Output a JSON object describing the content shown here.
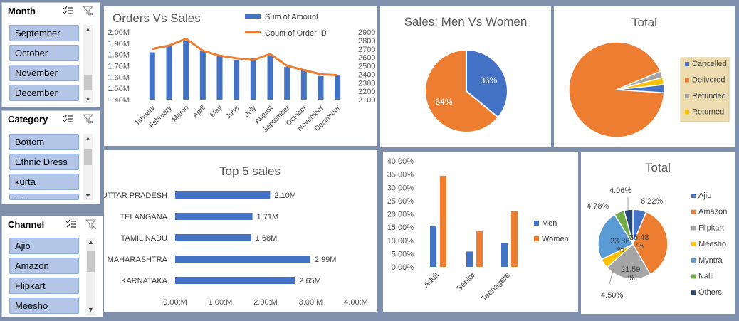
{
  "slicers": [
    {
      "title": "Month",
      "items": [
        "September",
        "October",
        "November",
        "December"
      ]
    },
    {
      "title": "Category",
      "items": [
        "Bottom",
        "Ethnic Dress",
        "kurta",
        "Set"
      ]
    },
    {
      "title": "Channel",
      "items": [
        "Ajio",
        "Amazon",
        "Flipkart",
        "Meesho"
      ]
    }
  ],
  "icons": {
    "multiselect": "multi-select-icon",
    "clear_filter": "clear-filter-icon",
    "scroll_up": "▲",
    "scroll_down": "▼"
  },
  "colors": {
    "blue": "#4472c4",
    "orange": "#ed7d31",
    "gray": "#a5a5a5",
    "yellow": "#ffc000",
    "lightblue": "#5b9bd5",
    "green": "#70ad47",
    "navy": "#264478"
  },
  "chart_data": [
    {
      "type": "bar+line",
      "title": "Orders Vs Sales",
      "categories": [
        "January",
        "February",
        "March",
        "April",
        "May",
        "June",
        "July",
        "August",
        "September",
        "October",
        "November",
        "December"
      ],
      "series": [
        {
          "name": "Sum of Amount",
          "axis": "left",
          "values": [
            1.82,
            1.88,
            1.92,
            1.83,
            1.79,
            1.75,
            1.77,
            1.8,
            1.69,
            1.67,
            1.61,
            1.62
          ]
        },
        {
          "name": "Count of Order ID",
          "axis": "right",
          "values": [
            2700,
            2740,
            2820,
            2680,
            2620,
            2590,
            2570,
            2640,
            2500,
            2450,
            2400,
            2390
          ]
        }
      ],
      "y_left_ticks": [
        "2.00M",
        "1.90M",
        "1.80M",
        "1.70M",
        "1.60M",
        "1.50M",
        "1.40M"
      ],
      "ylim_left": [
        1.4,
        2.0
      ],
      "y_right_ticks": [
        "2900",
        "2800",
        "2700",
        "2600",
        "2500",
        "2400",
        "2300",
        "2200",
        "2100"
      ],
      "ylim_right": [
        2100,
        2900
      ]
    },
    {
      "type": "pie",
      "title": "Sales: Men Vs Women",
      "slices": [
        {
          "name": "Men",
          "value": 36,
          "label": "36%"
        },
        {
          "name": "Women",
          "value": 64,
          "label": "64%"
        }
      ]
    },
    {
      "type": "pie",
      "title": "Total",
      "legend": "right",
      "slices": [
        {
          "name": "Cancelled",
          "value": 2.7
        },
        {
          "name": "Delivered",
          "value": 92.7
        },
        {
          "name": "Refunded",
          "value": 2.2
        },
        {
          "name": "Returned",
          "value": 2.4
        }
      ]
    },
    {
      "type": "bar",
      "orientation": "horizontal",
      "title": "Top 5 sales",
      "categories": [
        "UTTAR PRADESH",
        "TELANGANA",
        "TAMIL NADU",
        "MAHARASHTRA",
        "KARNATAKA"
      ],
      "values": [
        2.1,
        1.71,
        1.68,
        2.99,
        2.65
      ],
      "labels": [
        "2.10M",
        "1.71M",
        "1.68M",
        "2.99M",
        "2.65M"
      ],
      "x_ticks": [
        "0.00:M",
        "1.00:M",
        "2.00:M",
        "3.00:M",
        "4.00:M"
      ],
      "xlim": [
        0,
        4
      ]
    },
    {
      "type": "bar",
      "categories": [
        "Adult",
        "Senior",
        "Teenagere"
      ],
      "series": [
        {
          "name": "Men",
          "values": [
            15.3,
            5.8,
            9.0
          ]
        },
        {
          "name": "Women",
          "values": [
            34.4,
            13.5,
            21.0
          ]
        }
      ],
      "y_ticks": [
        "40.00%",
        "35.00%",
        "30.00%",
        "25.00%",
        "20.00%",
        "15.00%",
        "10.00%",
        "5.00%",
        "0.00%"
      ],
      "ylim": [
        0,
        40
      ],
      "legend": "right"
    },
    {
      "type": "pie",
      "title": "Total",
      "legend": "right",
      "slices": [
        {
          "name": "Ajio",
          "value": 6.22,
          "label": "6.22%"
        },
        {
          "name": "Amazon",
          "value": 35.48,
          "label": "35.48 %"
        },
        {
          "name": "Flipkart",
          "value": 21.59,
          "label": "21.59 %"
        },
        {
          "name": "Meesho",
          "value": 4.5,
          "label": "4.50%"
        },
        {
          "name": "Myntra",
          "value": 23.36,
          "label": "23.36 %"
        },
        {
          "name": "Nalli",
          "value": 4.78,
          "label": "4.78%"
        },
        {
          "name": "Others",
          "value": 4.06,
          "label": "4.06%"
        }
      ]
    }
  ]
}
